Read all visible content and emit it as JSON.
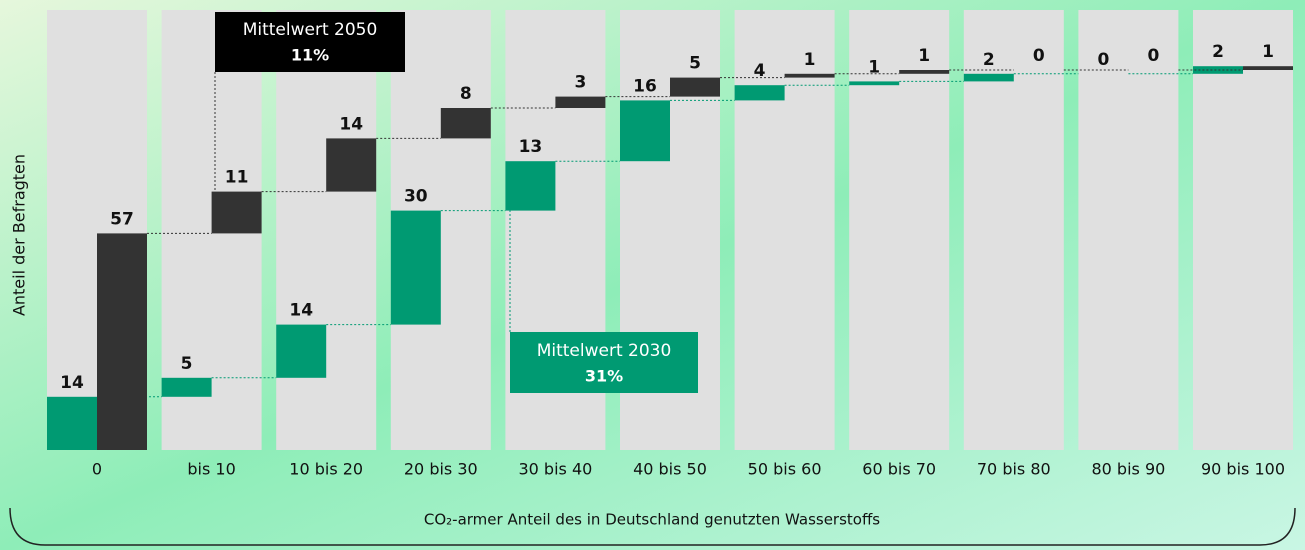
{
  "chart_data": {
    "type": "waterfall",
    "y_label": "Anteil der Befragten",
    "x_label": "CO₂-armer Anteil des in Deutschland genutzten Wasserstoffs",
    "categories": [
      "0",
      "bis 10",
      "10 bis 20",
      "20 bis 30",
      "30 bis 40",
      "40 bis 50",
      "50 bis 60",
      "60 bis 70",
      "70 bis 80",
      "80 bis 90",
      "90 bis 100"
    ],
    "series": [
      {
        "name": "2030",
        "color": "#009a72",
        "values": [
          14,
          5,
          14,
          30,
          13,
          16,
          4,
          1,
          2,
          0,
          2
        ]
      },
      {
        "name": "2050",
        "color": "#333333",
        "values": [
          57,
          11,
          14,
          8,
          3,
          5,
          1,
          1,
          0,
          0,
          1
        ]
      }
    ],
    "annotations": [
      {
        "title": "Mittelwert 2050",
        "value": "11%"
      },
      {
        "title": "Mittelwert 2030",
        "value": "31%"
      }
    ]
  }
}
